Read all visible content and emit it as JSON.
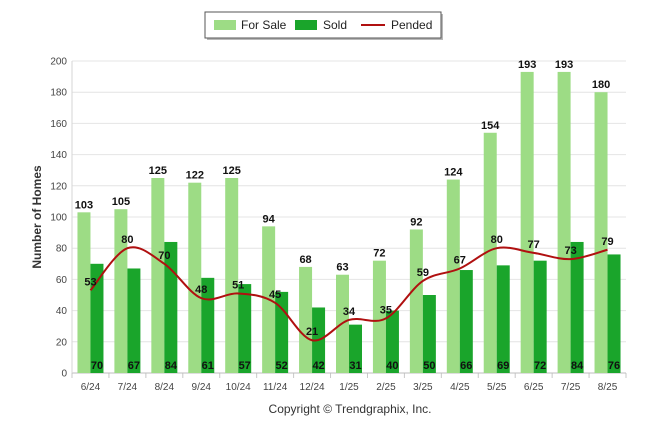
{
  "chart_data": {
    "type": "bar",
    "categories": [
      "6/24",
      "7/24",
      "8/24",
      "9/24",
      "10/24",
      "11/24",
      "12/24",
      "1/25",
      "2/25",
      "3/25",
      "4/25",
      "5/25",
      "6/25",
      "7/25",
      "8/25"
    ],
    "series": [
      {
        "name": "For Sale",
        "type": "bar",
        "color": "#9ddc85",
        "values": [
          103,
          105,
          125,
          122,
          125,
          94,
          68,
          63,
          72,
          92,
          124,
          154,
          193,
          193,
          180
        ]
      },
      {
        "name": "Sold",
        "type": "bar",
        "color": "#1aa52b",
        "values": [
          70,
          67,
          84,
          61,
          57,
          52,
          42,
          31,
          40,
          50,
          66,
          69,
          72,
          84,
          76
        ]
      },
      {
        "name": "Pended",
        "type": "line",
        "color": "#b01010",
        "values": [
          53,
          80,
          70,
          48,
          51,
          45,
          21,
          34,
          35,
          59,
          67,
          80,
          77,
          73,
          79
        ]
      }
    ],
    "title": "",
    "xlabel": "",
    "ylabel": "Number of Homes",
    "ylim": [
      0,
      200
    ],
    "yticks": [
      0,
      20,
      40,
      60,
      80,
      100,
      120,
      140,
      160,
      180,
      200
    ],
    "grid": true,
    "legend_position": "top-center"
  },
  "footer": {
    "copyright": "Copyright © Trendgraphix, Inc."
  }
}
